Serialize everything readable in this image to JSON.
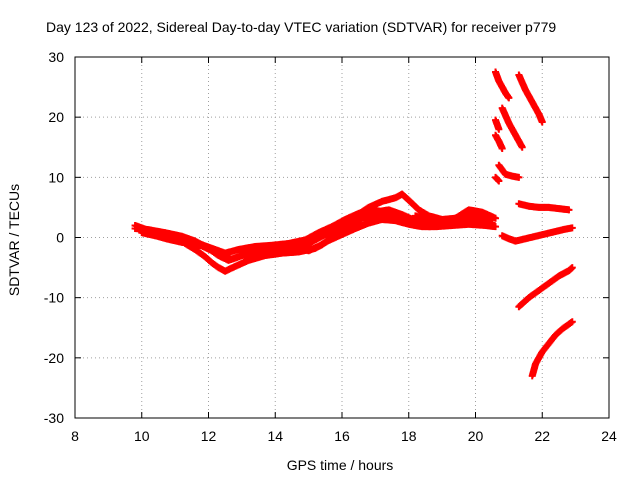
{
  "chart_data": {
    "type": "scatter",
    "title": "Day 123 of 2022, Sidereal Day-to-day VTEC variation (SDTVAR) for receiver p779",
    "xlabel": "GPS time / hours",
    "ylabel": "SDTVAR / TECUs",
    "xlim": [
      8,
      24
    ],
    "ylim": [
      -30,
      30
    ],
    "xticks": [
      8,
      10,
      12,
      14,
      16,
      18,
      20,
      22,
      24
    ],
    "yticks": [
      -30,
      -20,
      -10,
      0,
      10,
      20,
      30
    ],
    "grid": true,
    "marker": "plus",
    "color": "#ff0000",
    "series": [
      {
        "name": "trace-1",
        "x": [
          9.8,
          10.3,
          10.8,
          11.3,
          11.8,
          12.2,
          12.5,
          12.9,
          13.4,
          13.9,
          14.4,
          14.9,
          15.3,
          15.7,
          16.1,
          16.5,
          16.9,
          17.3,
          17.7,
          18.1,
          18.5,
          19.0,
          19.5,
          20.0,
          20.5
        ],
        "y": [
          2.0,
          1.0,
          0.2,
          -0.5,
          -1.2,
          -2.0,
          -2.6,
          -2.0,
          -1.5,
          -1.3,
          -1.0,
          -0.4,
          0.8,
          1.8,
          3.0,
          4.0,
          4.6,
          4.2,
          3.2,
          2.4,
          2.0,
          2.2,
          2.5,
          2.7,
          2.4
        ]
      },
      {
        "name": "trace-2",
        "x": [
          9.8,
          10.2,
          10.7,
          11.2,
          11.6,
          12.0,
          12.3,
          12.6,
          13.0,
          13.5,
          14.0,
          14.5,
          15.0,
          15.4,
          15.8,
          16.2,
          16.6,
          17.0,
          17.4,
          17.8,
          18.2,
          18.6,
          19.1,
          19.6,
          20.1,
          20.5
        ],
        "y": [
          1.5,
          1.3,
          0.8,
          0.2,
          -0.6,
          -1.8,
          -3.0,
          -3.8,
          -3.0,
          -2.4,
          -2.0,
          -1.6,
          -1.0,
          0.2,
          1.2,
          2.2,
          3.2,
          3.8,
          3.4,
          2.6,
          2.0,
          1.8,
          2.0,
          2.4,
          2.6,
          2.2
        ]
      },
      {
        "name": "trace-3",
        "x": [
          11.3,
          11.6,
          11.9,
          12.1,
          12.3,
          12.5,
          12.8,
          13.2,
          13.7,
          14.2,
          14.7,
          15.2,
          15.6,
          16.0,
          16.4,
          16.8,
          17.2,
          17.6,
          18.0,
          18.4,
          18.8,
          19.3,
          19.8,
          20.3,
          20.6
        ],
        "y": [
          -1.0,
          -2.0,
          -3.2,
          -4.2,
          -5.0,
          -5.6,
          -4.8,
          -3.8,
          -3.0,
          -2.6,
          -2.4,
          -1.8,
          -0.5,
          0.5,
          1.5,
          2.4,
          3.0,
          2.8,
          2.2,
          1.8,
          1.8,
          2.0,
          2.2,
          2.0,
          1.8
        ]
      },
      {
        "name": "trace-4",
        "x": [
          10.0,
          10.4,
          10.8,
          11.2,
          11.5,
          11.8,
          12.1,
          12.4,
          12.7,
          13.0,
          13.4,
          13.8,
          14.2,
          14.6,
          15.0,
          15.4,
          15.8,
          16.2,
          16.6,
          17.0,
          17.4,
          17.8,
          18.2,
          18.6,
          19.0
        ],
        "y": [
          0.8,
          0.3,
          -0.3,
          -0.8,
          -1.0,
          -1.4,
          -2.2,
          -3.2,
          -3.6,
          -3.0,
          -2.4,
          -1.8,
          -1.5,
          -1.7,
          -2.2,
          -1.2,
          0.4,
          1.8,
          3.2,
          4.2,
          4.6,
          3.8,
          2.8,
          2.2,
          2.0
        ]
      },
      {
        "name": "trace-5",
        "x": [
          15.6,
          16.0,
          16.4,
          16.8,
          17.2,
          17.6,
          17.8,
          18.0,
          18.3,
          18.6,
          19.0,
          19.4,
          19.8,
          20.2,
          20.5
        ],
        "y": [
          0.5,
          2.0,
          3.5,
          5.0,
          6.0,
          6.6,
          7.2,
          6.2,
          4.6,
          3.6,
          3.0,
          3.2,
          3.6,
          3.4,
          3.0
        ]
      },
      {
        "name": "trace-6",
        "x": [
          18.2,
          18.6,
          19.0,
          19.4,
          19.8,
          20.2,
          20.6
        ],
        "y": [
          3.6,
          2.8,
          2.6,
          3.2,
          4.6,
          4.2,
          3.2
        ]
      },
      {
        "name": "trace-7",
        "x": [
          20.6,
          20.7,
          20.8,
          20.9,
          21.0
        ],
        "y": [
          27.5,
          26.0,
          25.0,
          24.0,
          23.2
        ]
      },
      {
        "name": "trace-8",
        "x": [
          20.6,
          20.7
        ],
        "y": [
          19.5,
          18.0
        ]
      },
      {
        "name": "trace-9",
        "x": [
          20.6,
          20.7,
          20.8
        ],
        "y": [
          17.0,
          16.0,
          14.8
        ]
      },
      {
        "name": "trace-10",
        "x": [
          20.8,
          21.0,
          21.2,
          21.4
        ],
        "y": [
          21.5,
          19.0,
          17.0,
          15.0
        ]
      },
      {
        "name": "trace-11",
        "x": [
          21.3,
          21.5,
          21.7,
          21.9,
          22.0
        ],
        "y": [
          27.0,
          24.5,
          22.5,
          20.5,
          19.2
        ]
      },
      {
        "name": "trace-12",
        "x": [
          20.7,
          20.9,
          21.1,
          21.3
        ],
        "y": [
          12.0,
          10.5,
          10.2,
          10.0
        ]
      },
      {
        "name": "trace-13",
        "x": [
          20.6,
          20.7
        ],
        "y": [
          10.0,
          9.4
        ]
      },
      {
        "name": "trace-14",
        "x": [
          21.3,
          21.6,
          21.9,
          22.2,
          22.5,
          22.8
        ],
        "y": [
          5.6,
          5.2,
          5.0,
          5.0,
          4.8,
          4.6
        ]
      },
      {
        "name": "trace-15",
        "x": [
          20.8,
          21.0,
          21.2,
          21.5,
          21.8,
          22.1,
          22.4,
          22.7,
          22.9
        ],
        "y": [
          0.3,
          -0.2,
          -0.6,
          -0.2,
          0.2,
          0.6,
          1.0,
          1.4,
          1.6
        ]
      },
      {
        "name": "trace-16",
        "x": [
          21.3,
          21.6,
          21.9,
          22.2,
          22.5,
          22.8,
          22.9
        ],
        "y": [
          -11.5,
          -10.0,
          -8.8,
          -7.6,
          -6.4,
          -5.5,
          -5.0
        ]
      },
      {
        "name": "trace-17",
        "x": [
          21.7,
          21.8,
          22.0,
          22.2,
          22.4,
          22.6,
          22.8,
          22.9
        ],
        "y": [
          -23.0,
          -21.0,
          -19.0,
          -17.6,
          -16.2,
          -15.2,
          -14.4,
          -14.0
        ]
      }
    ]
  }
}
